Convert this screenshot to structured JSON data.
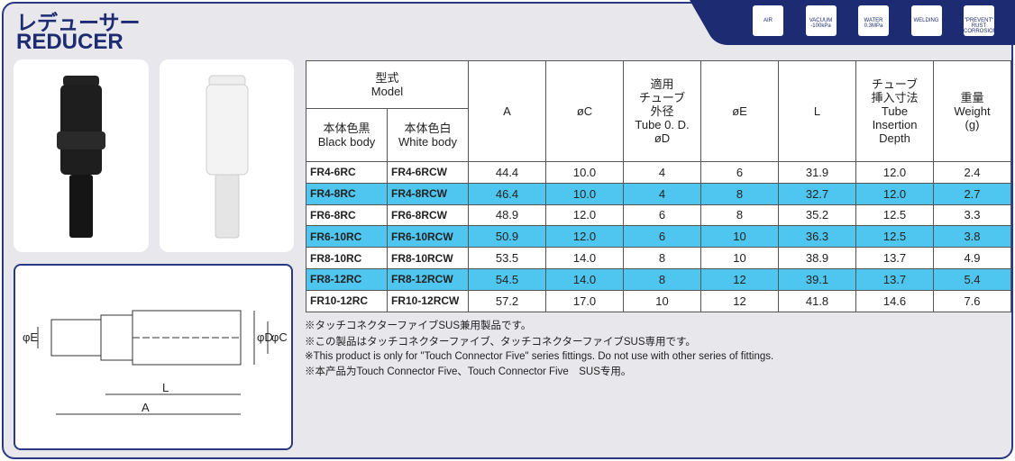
{
  "header": {
    "title_jp": "レデューサー",
    "title_en": "REDUCER"
  },
  "icons": [
    {
      "label": "AIR"
    },
    {
      "label": "VACUUM",
      "sub": "-100kPa"
    },
    {
      "label": "WATER",
      "sub": "0.3MPa"
    },
    {
      "label": "WELDING"
    },
    {
      "label": "\"PREVENT\"",
      "sub": "RUST CORROSION"
    }
  ],
  "diagram": {
    "labels": [
      "φE",
      "φD",
      "φC",
      "L",
      "A"
    ]
  },
  "table": {
    "model_header": [
      "型式",
      "Model"
    ],
    "sub_headers": [
      [
        "本体色黒",
        "Black body"
      ],
      [
        "本体色白",
        "White body"
      ]
    ],
    "headers": [
      [
        "A"
      ],
      [
        "øC"
      ],
      [
        "適用",
        "チューブ",
        "外径",
        "Tube 0. D.",
        "øD"
      ],
      [
        "øE"
      ],
      [
        "L"
      ],
      [
        "チューブ",
        "挿入寸法",
        "Tube",
        "Insertion",
        "Depth"
      ],
      [
        "重量",
        "Weight",
        "(g)"
      ]
    ],
    "rows": [
      [
        "FR4-6RC",
        "FR4-6RCW",
        "44.4",
        "10.0",
        "4",
        "6",
        "31.9",
        "12.0",
        "2.4"
      ],
      [
        "FR4-8RC",
        "FR4-8RCW",
        "46.4",
        "10.0",
        "4",
        "8",
        "32.7",
        "12.0",
        "2.7"
      ],
      [
        "FR6-8RC",
        "FR6-8RCW",
        "48.9",
        "12.0",
        "6",
        "8",
        "35.2",
        "12.5",
        "3.3"
      ],
      [
        "FR6-10RC",
        "FR6-10RCW",
        "50.9",
        "12.0",
        "6",
        "10",
        "36.3",
        "12.5",
        "3.8"
      ],
      [
        "FR8-10RC",
        "FR8-10RCW",
        "53.5",
        "14.0",
        "8",
        "10",
        "38.9",
        "13.7",
        "4.9"
      ],
      [
        "FR8-12RC",
        "FR8-12RCW",
        "54.5",
        "14.0",
        "8",
        "12",
        "39.1",
        "13.7",
        "5.4"
      ],
      [
        "FR10-12RC",
        "FR10-12RCW",
        "57.2",
        "17.0",
        "10",
        "12",
        "41.8",
        "14.6",
        "7.6"
      ]
    ]
  },
  "notes": [
    "※タッチコネクターファイブSUS兼用製品です。",
    "※この製品はタッチコネクターファイブ、タッチコネクターファイブSUS専用です。",
    "※This product is only for \"Touch Connector Five\" series fittings. Do not use with other series of fittings.",
    "※本产品为Touch Connector Five、Touch Connector Five　SUS专用。"
  ]
}
